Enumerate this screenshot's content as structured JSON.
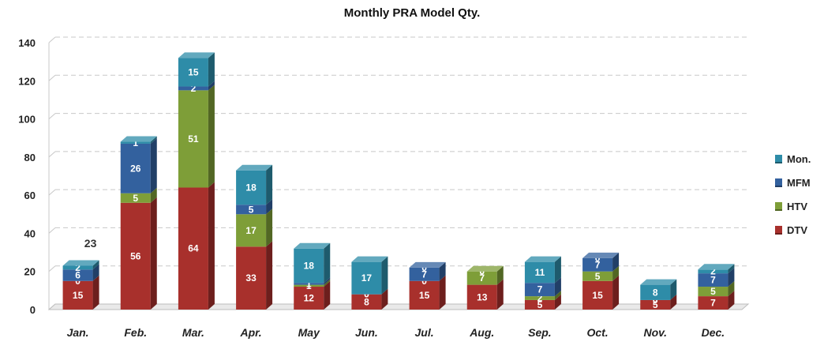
{
  "chart_data": {
    "type": "bar",
    "stacked": true,
    "title": "Monthly PRA Model Qty.",
    "xlabel": "",
    "ylabel": "",
    "ylim": [
      0,
      140
    ],
    "yticks": [
      0,
      20,
      40,
      60,
      80,
      100,
      120,
      140
    ],
    "grid": true,
    "legend_position": "right",
    "categories": [
      "Jan.",
      "Feb.",
      "Mar.",
      "Apr.",
      "May",
      "Jun.",
      "Jul.",
      "Aug.",
      "Sep.",
      "Oct.",
      "Nov.",
      "Dec."
    ],
    "series": [
      {
        "name": "DTV",
        "color": "#A8302C",
        "values": [
          15,
          56,
          64,
          33,
          12,
          8,
          15,
          13,
          5,
          15,
          5,
          7
        ]
      },
      {
        "name": "HTV",
        "color": "#7E9E38",
        "values": [
          0,
          5,
          51,
          17,
          1,
          0,
          0,
          7,
          2,
          5,
          0,
          5
        ]
      },
      {
        "name": "MFM",
        "color": "#33619E",
        "values": [
          6,
          26,
          2,
          5,
          1,
          0,
          7,
          0,
          7,
          7,
          0,
          7
        ]
      },
      {
        "name": "Mon.",
        "color": "#2E8CA8",
        "values": [
          2,
          1,
          15,
          18,
          18,
          17,
          0,
          0,
          11,
          0,
          8,
          2
        ]
      }
    ],
    "annotations": [
      {
        "category": "Jan.",
        "text": "23"
      }
    ]
  }
}
